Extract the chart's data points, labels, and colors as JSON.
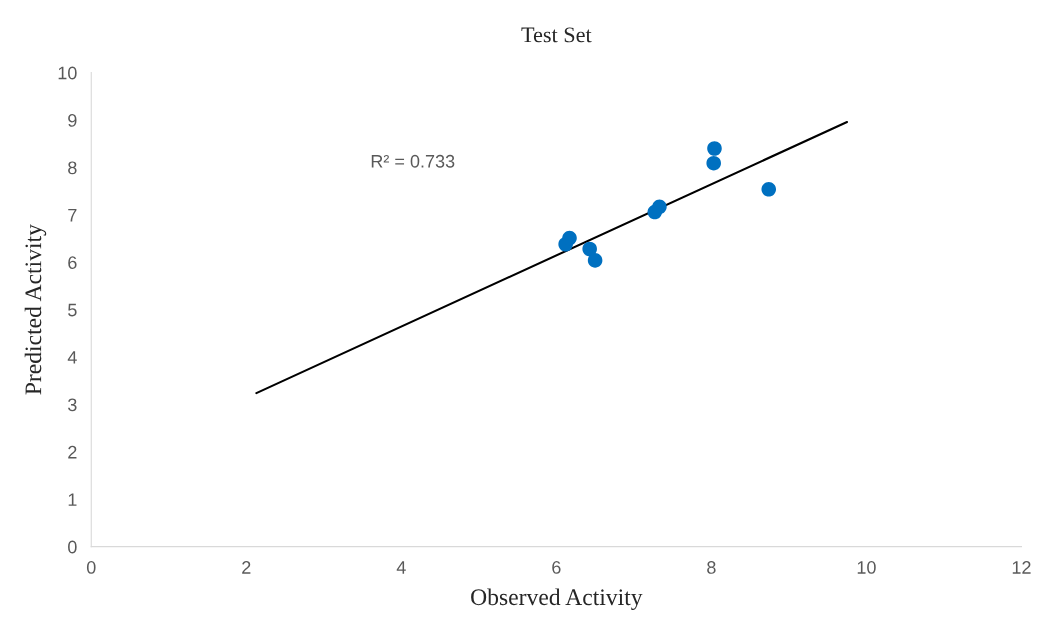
{
  "chart_data": {
    "type": "scatter",
    "title": "Test Set",
    "xlabel": "Observed Activity",
    "ylabel": "Predicted Activity",
    "xlim": [
      0,
      12
    ],
    "xticks": [
      0,
      2,
      4,
      6,
      8,
      10,
      12
    ],
    "ylim": [
      0,
      10
    ],
    "yticks": [
      0,
      1,
      2,
      3,
      4,
      5,
      6,
      7,
      8,
      9,
      10
    ],
    "grid": false,
    "series": [
      {
        "marker": "circle",
        "color": "#0070c0",
        "x": [
          6.12,
          6.17,
          6.43,
          6.5,
          7.27,
          7.33,
          8.03,
          8.04,
          8.74
        ],
        "values": [
          6.38,
          6.51,
          6.28,
          6.04,
          7.06,
          7.17,
          8.09,
          8.4,
          7.54
        ]
      },
      {
        "type": "line",
        "color": "#000000",
        "x": [
          2.13,
          9.75
        ],
        "values": [
          3.24,
          8.96
        ]
      }
    ],
    "annotations": [
      "R² = 0.733"
    ]
  }
}
